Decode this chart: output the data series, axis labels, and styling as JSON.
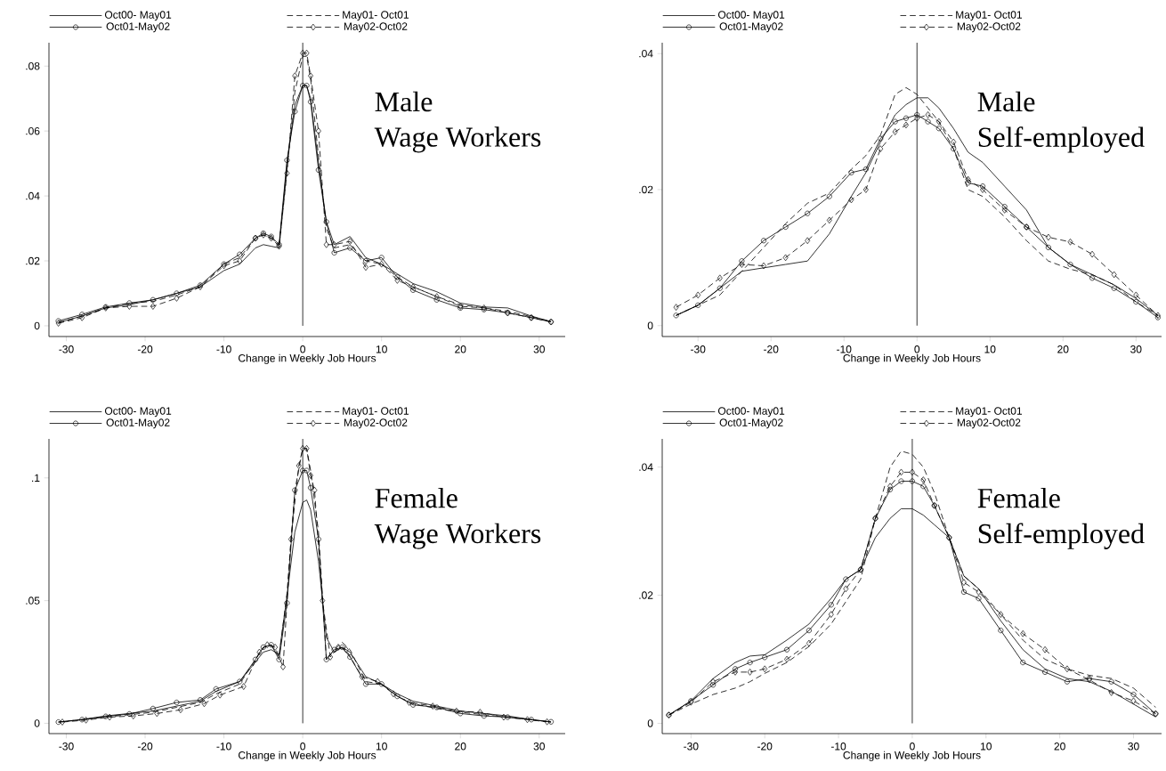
{
  "chart_data": [
    {
      "type": "line",
      "xlabel": "Change in Weekly Job Hours",
      "legend": "top",
      "annotations": [
        "Male",
        "Wage Workers"
      ],
      "x": [
        -31,
        -28,
        -25,
        -22,
        -19,
        -16,
        -13,
        -10,
        -8,
        -6,
        -5,
        -4,
        -3,
        -2,
        -1,
        0,
        0.5,
        1,
        2,
        3,
        4,
        6,
        8,
        10,
        12,
        14,
        17,
        20,
        23,
        26,
        29,
        31.5
      ],
      "series": [
        {
          "name": "Oct00- May01",
          "color": "#000000",
          "line_style": "solid",
          "marker": "none",
          "values": [
            0.001,
            0.003,
            0.0055,
            0.0065,
            0.008,
            0.01,
            0.012,
            0.017,
            0.019,
            0.024,
            0.025,
            0.0245,
            0.024,
            0.05,
            0.068,
            0.074,
            0.074,
            0.07,
            0.05,
            0.032,
            0.025,
            0.0275,
            0.021,
            0.019,
            0.016,
            0.013,
            0.0105,
            0.007,
            0.0058,
            0.0055,
            0.003,
            0.0013
          ]
        },
        {
          "name": "May01- Oct01",
          "color": "#000000",
          "line_style": "dashed",
          "marker": "none",
          "values": [
            0.001,
            0.003,
            0.0055,
            0.007,
            0.0075,
            0.0095,
            0.012,
            0.019,
            0.021,
            0.027,
            0.028,
            0.027,
            0.025,
            0.048,
            0.072,
            0.083,
            0.083,
            0.076,
            0.052,
            0.03,
            0.024,
            0.025,
            0.02,
            0.019,
            0.015,
            0.012,
            0.009,
            0.0065,
            0.0055,
            0.0045,
            0.0028,
            0.0013
          ]
        },
        {
          "name": "Oct01-May02",
          "color": "#000000",
          "line_style": "solid",
          "marker": "circle",
          "values": [
            0.0015,
            0.0035,
            0.0058,
            0.007,
            0.008,
            0.01,
            0.0125,
            0.019,
            0.022,
            0.027,
            0.0285,
            0.0275,
            0.025,
            0.051,
            0.066,
            0.074,
            0.074,
            0.069,
            0.048,
            0.032,
            0.0225,
            0.024,
            0.02,
            0.021,
            0.015,
            0.011,
            0.008,
            0.0055,
            0.005,
            0.004,
            0.0025,
            0.0012
          ]
        },
        {
          "name": "May02-Oct02",
          "color": "#000000",
          "line_style": "dashed",
          "marker": "diamond",
          "values": [
            0.0008,
            0.0025,
            0.0055,
            0.006,
            0.006,
            0.0085,
            0.012,
            0.0185,
            0.02,
            0.027,
            0.028,
            0.027,
            0.0245,
            0.047,
            0.077,
            0.084,
            0.084,
            0.077,
            0.06,
            0.025,
            0.025,
            0.026,
            0.018,
            0.019,
            0.014,
            0.012,
            0.009,
            0.006,
            0.0055,
            0.004,
            0.0025,
            0.0012
          ]
        }
      ],
      "xlim": [
        -32.2,
        33.3
      ],
      "ylim": [
        -0.0033,
        0.0872
      ],
      "xticks": [
        -30,
        -20,
        -10,
        0,
        10,
        20,
        30
      ],
      "yticks": [
        0,
        {
          "value": 0.02,
          "label": ".02"
        },
        {
          "value": 0.04,
          "label": ".04"
        },
        {
          "value": 0.06,
          "label": ".06"
        },
        {
          "value": 0.08,
          "label": ".08"
        }
      ],
      "ref_lines": [
        {
          "axis": "x",
          "value": 0
        }
      ]
    },
    {
      "type": "line",
      "xlabel": "Change in Weekly Job Hours",
      "legend": "top",
      "annotations": [
        "Male",
        "Self-employed"
      ],
      "x": [
        -33,
        -30,
        -27,
        -24,
        -21,
        -18,
        -15,
        -12,
        -9,
        -7,
        -5,
        -3,
        -1.5,
        0,
        1.5,
        3,
        5,
        7,
        9,
        12,
        15,
        18,
        21,
        24,
        27,
        30,
        33
      ],
      "series": [
        {
          "name": "Oct00- May01",
          "color": "#000000",
          "line_style": "solid",
          "marker": "none",
          "values": [
            0.0015,
            0.003,
            0.0055,
            0.008,
            0.0085,
            0.009,
            0.0095,
            0.0135,
            0.019,
            0.0225,
            0.027,
            0.031,
            0.0325,
            0.0335,
            0.0335,
            0.032,
            0.029,
            0.0255,
            0.024,
            0.0205,
            0.017,
            0.0115,
            0.009,
            0.0075,
            0.006,
            0.004,
            0.0015
          ]
        },
        {
          "name": "May01- Oct01",
          "color": "#000000",
          "line_style": "dashed",
          "marker": "none",
          "values": [
            0.0015,
            0.003,
            0.0045,
            0.008,
            0.0115,
            0.015,
            0.018,
            0.0195,
            0.023,
            0.025,
            0.028,
            0.034,
            0.035,
            0.034,
            0.032,
            0.03,
            0.026,
            0.02,
            0.019,
            0.016,
            0.0125,
            0.0095,
            0.0083,
            0.0075,
            0.006,
            0.0035,
            0.0015
          ]
        },
        {
          "name": "Oct01-May02",
          "color": "#000000",
          "line_style": "solid",
          "marker": "circle",
          "values": [
            0.0015,
            0.003,
            0.0055,
            0.0095,
            0.0125,
            0.0145,
            0.0165,
            0.019,
            0.0225,
            0.023,
            0.0275,
            0.03,
            0.0305,
            0.031,
            0.03,
            0.029,
            0.026,
            0.021,
            0.0205,
            0.0175,
            0.0145,
            0.0115,
            0.009,
            0.007,
            0.0055,
            0.0035,
            0.0012
          ]
        },
        {
          "name": "May02-Oct02",
          "color": "#000000",
          "line_style": "dashed",
          "marker": "diamond",
          "values": [
            0.0027,
            0.0045,
            0.007,
            0.009,
            0.0088,
            0.01,
            0.0125,
            0.0155,
            0.0185,
            0.02,
            0.026,
            0.0285,
            0.0295,
            0.0305,
            0.031,
            0.03,
            0.027,
            0.0215,
            0.02,
            0.017,
            0.0145,
            0.013,
            0.0123,
            0.0105,
            0.0075,
            0.0045,
            0.0015
          ]
        }
      ],
      "xlim": [
        -34.9,
        33.5
      ],
      "ylim": [
        -0.0016,
        0.0416
      ],
      "xticks": [
        -30,
        -20,
        -10,
        0,
        10,
        20,
        30
      ],
      "yticks": [
        0,
        {
          "value": 0.02,
          "label": ".02"
        },
        {
          "value": 0.04,
          "label": ".04"
        }
      ],
      "ref_lines": [
        {
          "axis": "x",
          "value": 0
        }
      ]
    },
    {
      "type": "line",
      "xlabel": "Change in Weekly Job Hours",
      "legend": "top",
      "annotations": [
        "Female",
        "Wage Workers"
      ],
      "x": [
        -31,
        -28,
        -25,
        -22,
        -19,
        -16,
        -13,
        -11,
        -8,
        -6,
        -5,
        -4,
        -3,
        -2,
        -1,
        0,
        0.5,
        1,
        2,
        3,
        4,
        5,
        6,
        8,
        10,
        12,
        14,
        17,
        20,
        23,
        26,
        29,
        31.5
      ],
      "series": [
        {
          "name": "Oct00- May01",
          "color": "#000000",
          "line_style": "solid",
          "marker": "none",
          "values": [
            0.0005,
            0.0015,
            0.003,
            0.004,
            0.005,
            0.007,
            0.009,
            0.013,
            0.017,
            0.025,
            0.029,
            0.03,
            0.028,
            0.052,
            0.078,
            0.09,
            0.091,
            0.087,
            0.066,
            0.035,
            0.029,
            0.031,
            0.029,
            0.019,
            0.016,
            0.012,
            0.009,
            0.007,
            0.005,
            0.004,
            0.003,
            0.0015,
            0.0005
          ]
        },
        {
          "name": "May01- Oct01",
          "color": "#000000",
          "line_style": "dashed",
          "marker": "none",
          "values": [
            0.0005,
            0.0015,
            0.0025,
            0.0035,
            0.0045,
            0.0065,
            0.0085,
            0.012,
            0.016,
            0.026,
            0.031,
            0.032,
            0.027,
            0.053,
            0.095,
            0.112,
            0.112,
            0.103,
            0.078,
            0.026,
            0.03,
            0.033,
            0.03,
            0.017,
            0.016,
            0.011,
            0.008,
            0.006,
            0.0045,
            0.0035,
            0.0025,
            0.0015,
            0.0005
          ]
        },
        {
          "name": "Oct01-May02",
          "color": "#000000",
          "line_style": "solid",
          "marker": "circle",
          "values": [
            0.0005,
            0.0015,
            0.0028,
            0.0038,
            0.006,
            0.0085,
            0.0095,
            0.014,
            0.017,
            0.026,
            0.031,
            0.032,
            0.026,
            0.049,
            0.095,
            0.103,
            0.103,
            0.096,
            0.075,
            0.026,
            0.03,
            0.031,
            0.027,
            0.016,
            0.016,
            0.011,
            0.0075,
            0.0065,
            0.004,
            0.003,
            0.0025,
            0.0015,
            0.0006
          ]
        },
        {
          "name": "May02-Oct02",
          "color": "#000000",
          "line_style": "dashed",
          "marker": "diamond",
          "x": [
            -30.5,
            -27.5,
            -24.5,
            -21.5,
            -18.5,
            -15.5,
            -12.5,
            -10.5,
            -7.5,
            -5.5,
            -4.5,
            -3.5,
            -2.5,
            -1.5,
            -0.5,
            0,
            0.5,
            1,
            1.5,
            2.5,
            3.5,
            4.5,
            5.5,
            7.5,
            9.5,
            11.5,
            13.5,
            16.5,
            19.5,
            22.5,
            25.5,
            28.5,
            31
          ],
          "values": [
            0.0005,
            0.0013,
            0.0025,
            0.003,
            0.004,
            0.0055,
            0.008,
            0.0115,
            0.015,
            0.029,
            0.032,
            0.031,
            0.023,
            0.075,
            0.105,
            0.112,
            0.112,
            0.101,
            0.095,
            0.05,
            0.027,
            0.031,
            0.03,
            0.019,
            0.017,
            0.012,
            0.0085,
            0.007,
            0.005,
            0.0045,
            0.0025,
            0.0015,
            0.0006
          ]
        }
      ],
      "xlim": [
        -32.2,
        33.3
      ],
      "ylim": [
        -0.0042,
        0.1159
      ],
      "xticks": [
        -30,
        -20,
        -10,
        0,
        10,
        20,
        30
      ],
      "yticks": [
        0,
        {
          "value": 0.05,
          "label": ".05"
        },
        {
          "value": 0.1,
          "label": ".1"
        }
      ],
      "ref_lines": [
        {
          "axis": "x",
          "value": 0
        }
      ]
    },
    {
      "type": "line",
      "xlabel": "Change in Weekly Job Hours",
      "legend": "top",
      "annotations": [
        "Female",
        "Self-employed"
      ],
      "x": [
        -33,
        -30,
        -27,
        -24,
        -22,
        -20,
        -17,
        -14,
        -11,
        -9,
        -7,
        -5,
        -3,
        -1.5,
        0,
        1.5,
        3,
        5,
        7,
        9,
        12,
        15,
        18,
        21,
        24,
        27,
        30,
        33
      ],
      "series": [
        {
          "name": "Oct00- May01",
          "color": "#000000",
          "line_style": "solid",
          "marker": "none",
          "values": [
            0.0013,
            0.0035,
            0.007,
            0.0095,
            0.0105,
            0.0107,
            0.013,
            0.0155,
            0.0195,
            0.0225,
            0.024,
            0.029,
            0.032,
            0.0335,
            0.0335,
            0.0325,
            0.031,
            0.029,
            0.023,
            0.021,
            0.016,
            0.0115,
            0.0085,
            0.007,
            0.0065,
            0.005,
            0.003,
            0.001
          ]
        },
        {
          "name": "May01- Oct01",
          "color": "#000000",
          "line_style": "dashed",
          "marker": "none",
          "values": [
            0.0013,
            0.003,
            0.0045,
            0.0055,
            0.0065,
            0.0078,
            0.0095,
            0.012,
            0.0155,
            0.019,
            0.0225,
            0.032,
            0.04,
            0.0425,
            0.042,
            0.04,
            0.036,
            0.029,
            0.023,
            0.021,
            0.017,
            0.013,
            0.01,
            0.0085,
            0.0075,
            0.007,
            0.0055,
            0.0025
          ]
        },
        {
          "name": "Oct01-May02",
          "color": "#000000",
          "line_style": "solid",
          "marker": "circle",
          "values": [
            0.0013,
            0.0035,
            0.006,
            0.0085,
            0.0095,
            0.0103,
            0.0115,
            0.0145,
            0.0185,
            0.0225,
            0.024,
            0.032,
            0.0365,
            0.0378,
            0.0378,
            0.037,
            0.034,
            0.029,
            0.0205,
            0.0195,
            0.0145,
            0.0095,
            0.008,
            0.0065,
            0.007,
            0.0065,
            0.0045,
            0.0015
          ]
        },
        {
          "name": "May02-Oct02",
          "color": "#000000",
          "line_style": "dashed",
          "marker": "diamond",
          "values": [
            0.0013,
            0.0033,
            0.0065,
            0.008,
            0.008,
            0.0085,
            0.01,
            0.0125,
            0.017,
            0.021,
            0.024,
            0.032,
            0.037,
            0.0392,
            0.0392,
            0.038,
            0.034,
            0.029,
            0.022,
            0.0205,
            0.017,
            0.014,
            0.0115,
            0.0085,
            0.0068,
            0.0048,
            0.0035,
            0.0015
          ]
        }
      ],
      "xlim": [
        -33.9,
        33.8
      ],
      "ylim": [
        -0.0016,
        0.0444
      ],
      "xticks": [
        -30,
        -20,
        -10,
        0,
        10,
        20,
        30
      ],
      "yticks": [
        0,
        {
          "value": 0.02,
          "label": ".02"
        },
        {
          "value": 0.04,
          "label": ".04"
        }
      ],
      "ref_lines": [
        {
          "axis": "x",
          "value": 0
        }
      ]
    }
  ]
}
